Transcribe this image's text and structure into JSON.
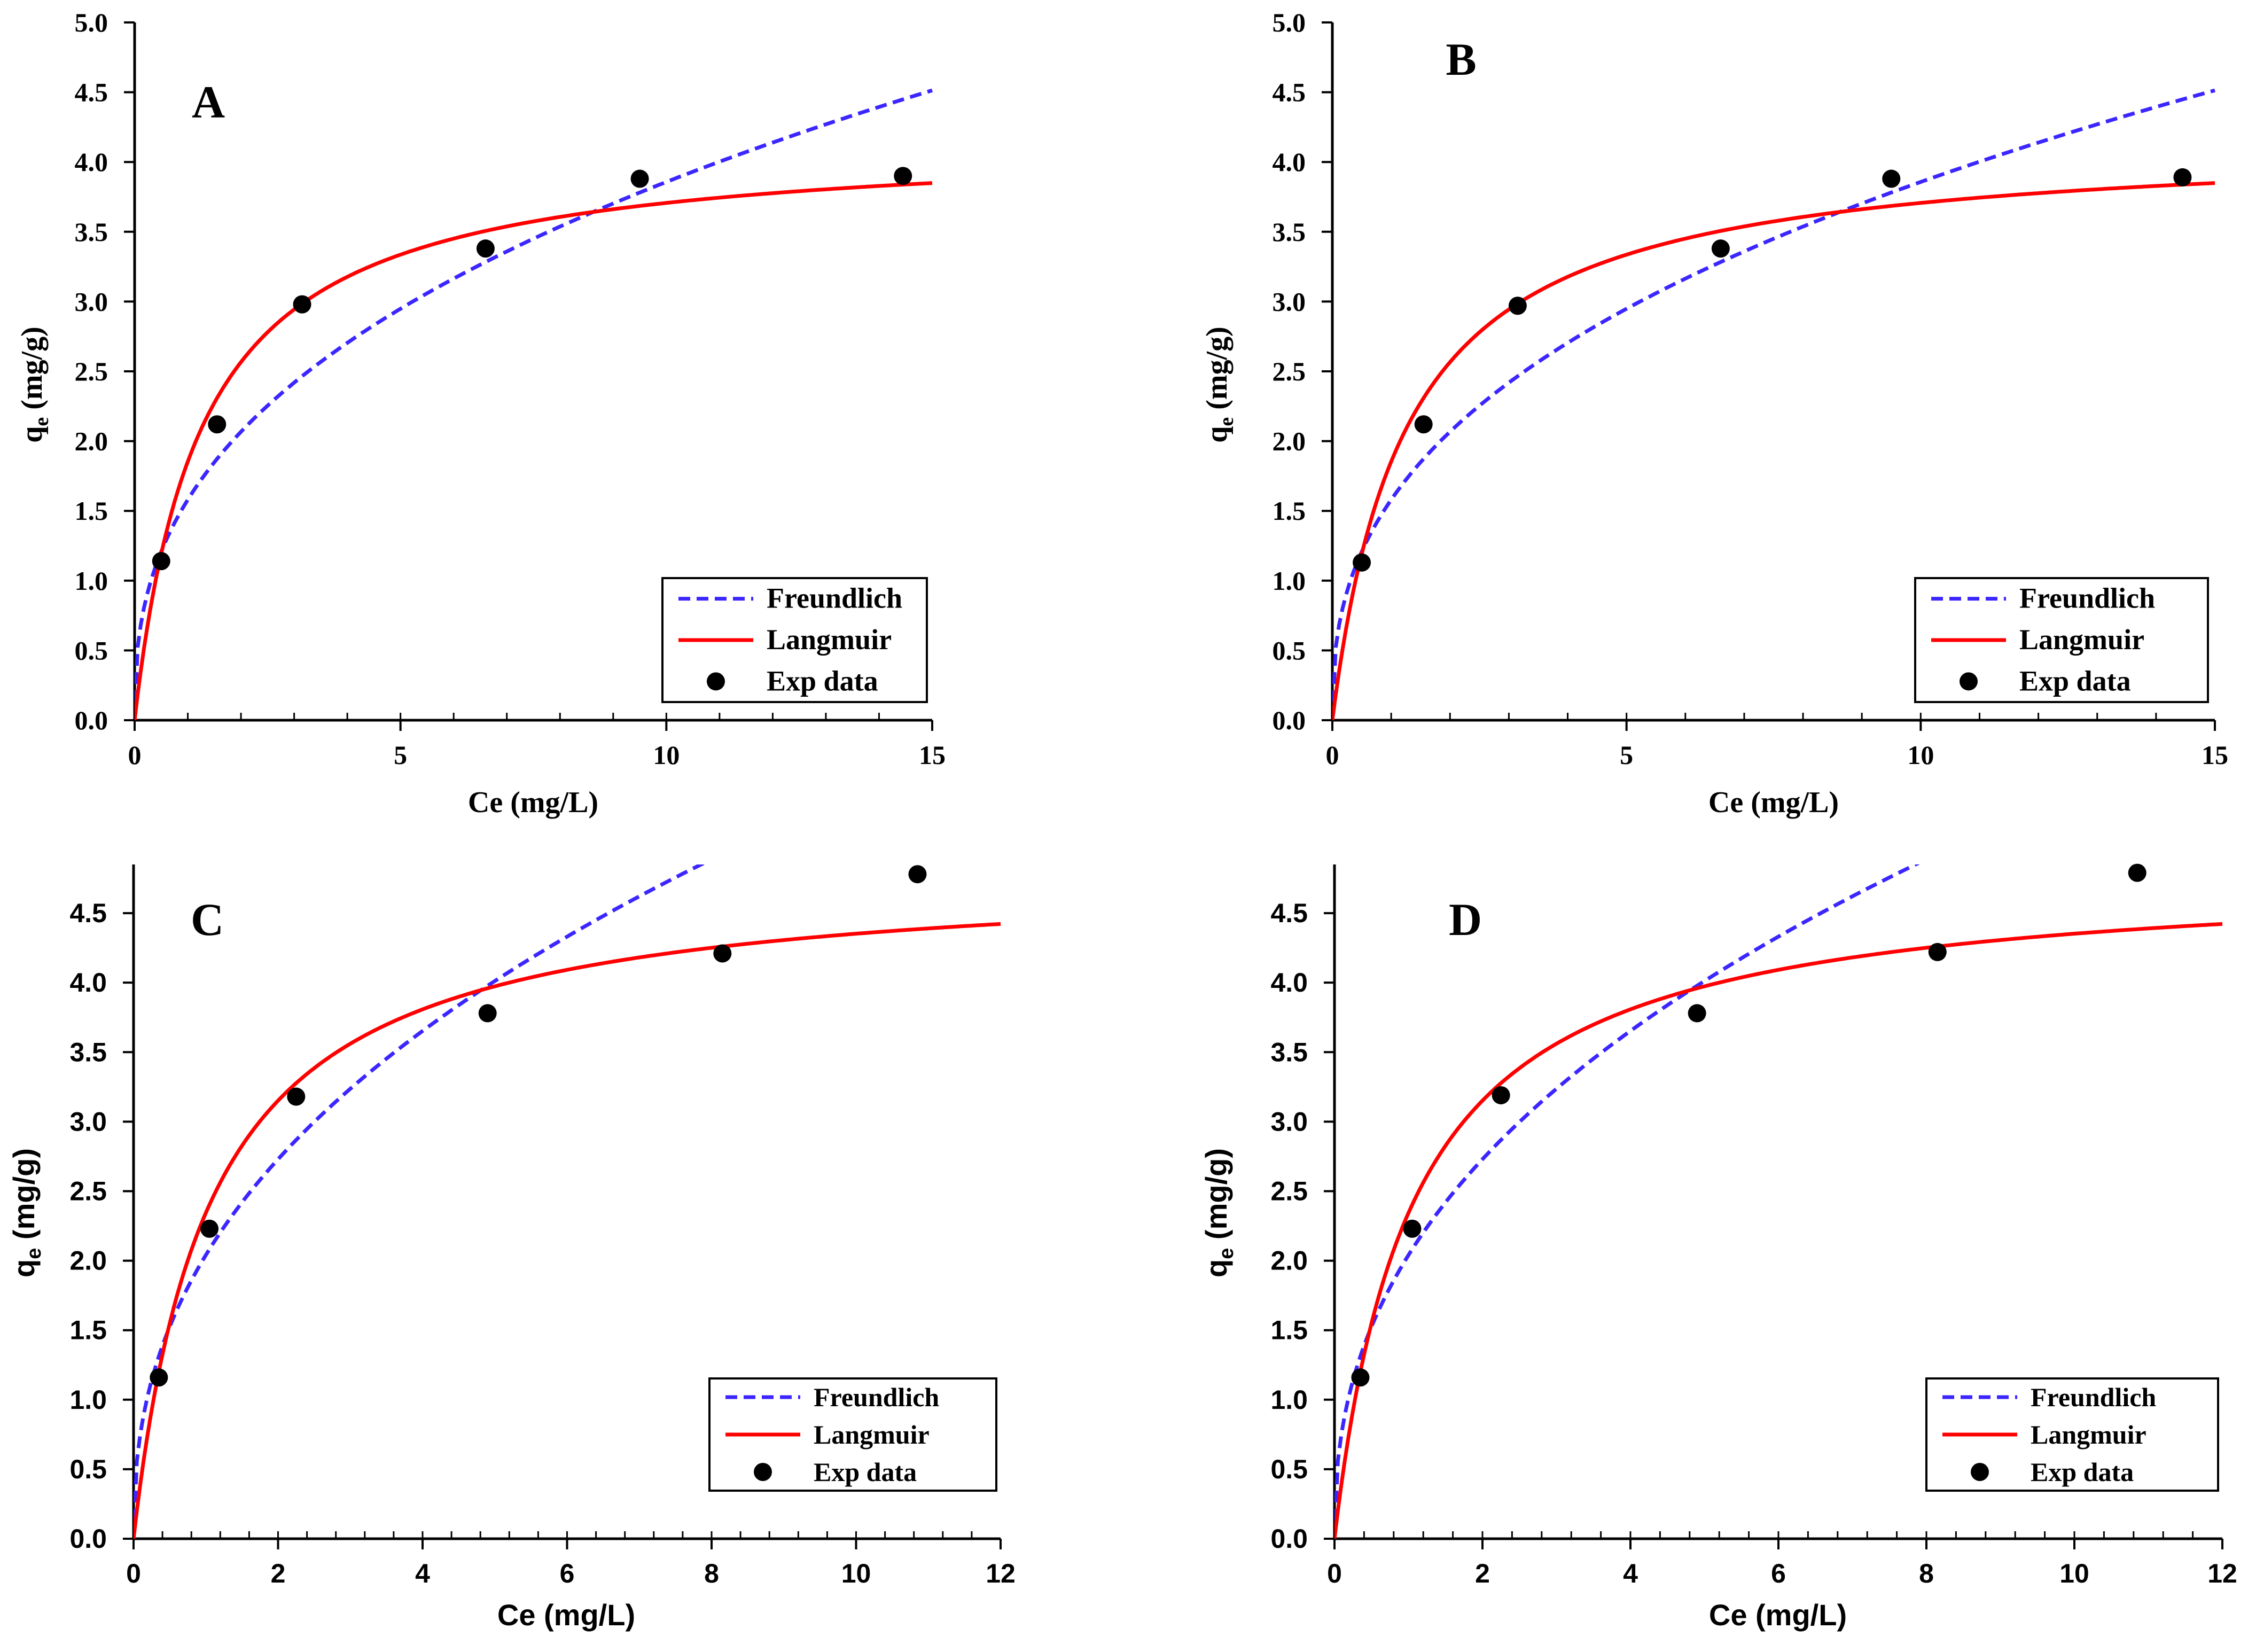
{
  "colors": {
    "freundlich": "#3b26ff",
    "langmuir": "#ff0000",
    "exp": "#000000",
    "axis": "#000000"
  },
  "chart_data": [
    {
      "type": "line",
      "panel_label": "A",
      "xlabel": "Ce (mg/L)",
      "ylabel_main": "q",
      "ylabel_sub": "e",
      "ylabel_unit": " (mg/g)",
      "xlim": [
        0,
        15
      ],
      "ylim": [
        0,
        5.0
      ],
      "x_ticks": [
        0,
        5,
        10,
        15
      ],
      "y_ticks": [
        0.0,
        0.5,
        1.0,
        1.5,
        2.0,
        2.5,
        3.0,
        3.5,
        4.0,
        4.5,
        5.0
      ],
      "tick_decimals_y": 1,
      "minor_x_step": 1,
      "legend": {
        "position": "bottom-right",
        "entries": [
          "Freundlich",
          "Langmuir",
          "Exp data"
        ]
      },
      "series": [
        {
          "name": "Freundlich",
          "style": "dashed",
          "model": "freundlich",
          "params": {
            "KF": 1.58,
            "n": 2.58
          },
          "x_range": [
            0,
            15
          ]
        },
        {
          "name": "Langmuir",
          "style": "solid",
          "model": "langmuir",
          "params": {
            "qmax": 4.17,
            "KL": 0.8
          },
          "x_range": [
            0,
            15
          ]
        },
        {
          "name": "Exp data",
          "style": "markers",
          "x": [
            0.5,
            1.55,
            3.15,
            6.6,
            9.5,
            14.45
          ],
          "y": [
            1.14,
            2.12,
            2.98,
            3.38,
            3.88,
            3.9
          ]
        }
      ]
    },
    {
      "type": "line",
      "panel_label": "B",
      "xlabel": "Ce (mg/L)",
      "ylabel_main": "q",
      "ylabel_sub": "e",
      "ylabel_unit": " (mg/g)",
      "xlim": [
        0,
        15
      ],
      "ylim": [
        0,
        5.0
      ],
      "x_ticks": [
        0,
        5,
        10,
        15
      ],
      "y_ticks": [
        0.0,
        0.5,
        1.0,
        1.5,
        2.0,
        2.5,
        3.0,
        3.5,
        4.0,
        4.5,
        5.0
      ],
      "tick_decimals_y": 1,
      "minor_x_step": 1,
      "legend": {
        "position": "bottom-right",
        "entries": [
          "Freundlich",
          "Langmuir",
          "Exp data"
        ]
      },
      "series": [
        {
          "name": "Freundlich",
          "style": "dashed",
          "model": "freundlich",
          "params": {
            "KF": 1.58,
            "n": 2.58
          },
          "x_range": [
            0,
            15
          ]
        },
        {
          "name": "Langmuir",
          "style": "solid",
          "model": "langmuir",
          "params": {
            "qmax": 4.17,
            "KL": 0.8
          },
          "x_range": [
            0,
            15
          ]
        },
        {
          "name": "Exp data",
          "style": "markers",
          "x": [
            0.5,
            1.55,
            3.15,
            6.6,
            9.5,
            14.45
          ],
          "y": [
            1.13,
            2.12,
            2.97,
            3.38,
            3.88,
            3.89
          ]
        }
      ]
    },
    {
      "type": "line",
      "panel_label": "C",
      "xlabel": "Ce (mg/L)",
      "ylabel_main": "q",
      "ylabel_sub": "e",
      "ylabel_unit": " (mg/g)",
      "xlim": [
        0,
        12
      ],
      "ylim": [
        0,
        4.85
      ],
      "x_ticks": [
        0,
        2,
        4,
        6,
        8,
        10,
        12
      ],
      "y_ticks": [
        0.0,
        0.5,
        1.0,
        1.5,
        2.0,
        2.5,
        3.0,
        3.5,
        4.0,
        4.5
      ],
      "tick_decimals_y": 1,
      "minor_x_step": 0.4,
      "legend": {
        "position": "bottom-right",
        "entries": [
          "Freundlich",
          "Langmuir",
          "Exp data"
        ]
      },
      "series": [
        {
          "name": "Freundlich",
          "style": "dashed",
          "model": "freundlich",
          "params": {
            "KF": 2.04,
            "n": 2.38
          },
          "x_range": [
            0,
            12
          ]
        },
        {
          "name": "Langmuir",
          "style": "solid",
          "model": "langmuir",
          "params": {
            "qmax": 4.81,
            "KL": 0.95
          },
          "x_range": [
            0,
            12
          ]
        },
        {
          "name": "Exp data",
          "style": "markers",
          "x": [
            0.35,
            1.05,
            2.25,
            4.9,
            8.15,
            10.85
          ],
          "y": [
            1.16,
            2.23,
            3.18,
            3.78,
            4.21,
            4.78
          ]
        }
      ]
    },
    {
      "type": "line",
      "panel_label": "D",
      "xlabel": "Ce (mg/L)",
      "ylabel_main": "q",
      "ylabel_sub": "e",
      "ylabel_unit": " (mg/g)",
      "xlim": [
        0,
        12
      ],
      "ylim": [
        0,
        4.85
      ],
      "x_ticks": [
        0,
        2,
        4,
        6,
        8,
        10,
        12
      ],
      "y_ticks": [
        0.0,
        0.5,
        1.0,
        1.5,
        2.0,
        2.5,
        3.0,
        3.5,
        4.0,
        4.5
      ],
      "tick_decimals_y": 1,
      "minor_x_step": 0.4,
      "legend": {
        "position": "bottom-right",
        "entries": [
          "Freundlich",
          "Langmuir",
          "Exp data"
        ]
      },
      "series": [
        {
          "name": "Freundlich",
          "style": "dashed",
          "model": "freundlich",
          "params": {
            "KF": 2.04,
            "n": 2.38
          },
          "x_range": [
            0,
            12
          ]
        },
        {
          "name": "Langmuir",
          "style": "solid",
          "model": "langmuir",
          "params": {
            "qmax": 4.81,
            "KL": 0.95
          },
          "x_range": [
            0,
            12
          ]
        },
        {
          "name": "Exp data",
          "style": "markers",
          "x": [
            0.35,
            1.05,
            2.25,
            4.9,
            8.15,
            10.85
          ],
          "y": [
            1.16,
            2.23,
            3.19,
            3.78,
            4.22,
            4.79
          ]
        }
      ]
    }
  ]
}
